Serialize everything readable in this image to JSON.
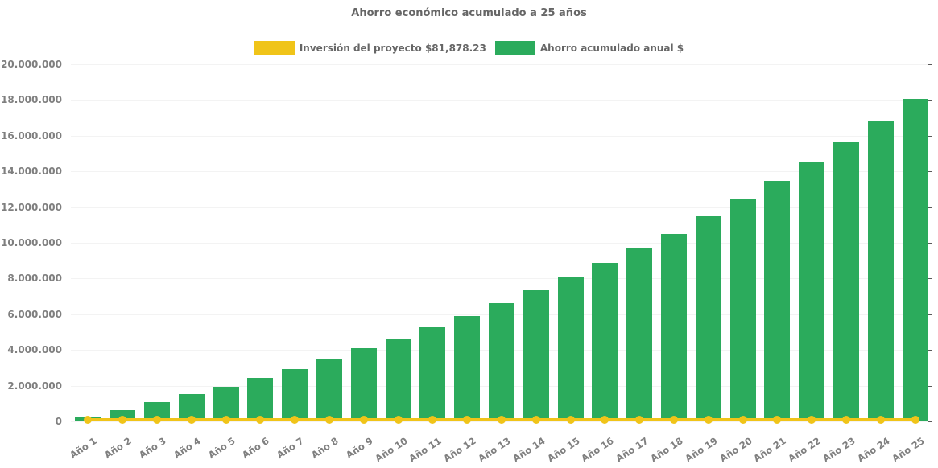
{
  "chart_data": {
    "type": "bar",
    "title": "Ahorro económico acumulado a 25 años",
    "categories": [
      "Año 1",
      "Año 2",
      "Año 3",
      "Año 4",
      "Año 5",
      "Año 6",
      "Año 7",
      "Año 8",
      "Año 9",
      "Año 10",
      "Año 11",
      "Año 12",
      "Año 13",
      "Año 14",
      "Año 15",
      "Año 16",
      "Año 17",
      "Año 18",
      "Año 19",
      "Año 20",
      "Año 21",
      "Año 22",
      "Año 23",
      "Año 24",
      "Año 25"
    ],
    "series": [
      {
        "name": "Inversión del proyecto $81,878.23",
        "type": "line",
        "color": "#F0C419",
        "constant_value": 81878.23
      },
      {
        "name": "Ahorro acumulado anual $",
        "type": "bar",
        "color": "#2BAB5C",
        "values": [
          230000,
          620000,
          1070000,
          1510000,
          1950000,
          2440000,
          2940000,
          3490000,
          4080000,
          4630000,
          5290000,
          5890000,
          6600000,
          7320000,
          8050000,
          8870000,
          9680000,
          10490000,
          11480000,
          12470000,
          13450000,
          14500000,
          15650000,
          16840000,
          18070000
        ]
      }
    ],
    "ylim": [
      0,
      20000000
    ],
    "ytick_interval": 2000000,
    "ytick_labels": [
      "0",
      "2.000.000",
      "4.000.000",
      "6.000.000",
      "8.000.000",
      "10.000.000",
      "12.000.000",
      "14.000.000",
      "16.000.000",
      "18.000.000",
      "20.000.000"
    ],
    "xlabel": "",
    "ylabel": "",
    "legend_position": "top-center",
    "grid": false,
    "x_label_rotation_deg": -33,
    "text_colors": {
      "title": "#666666",
      "legend": "#666666",
      "axis_labels": "#7f7f7f"
    }
  }
}
